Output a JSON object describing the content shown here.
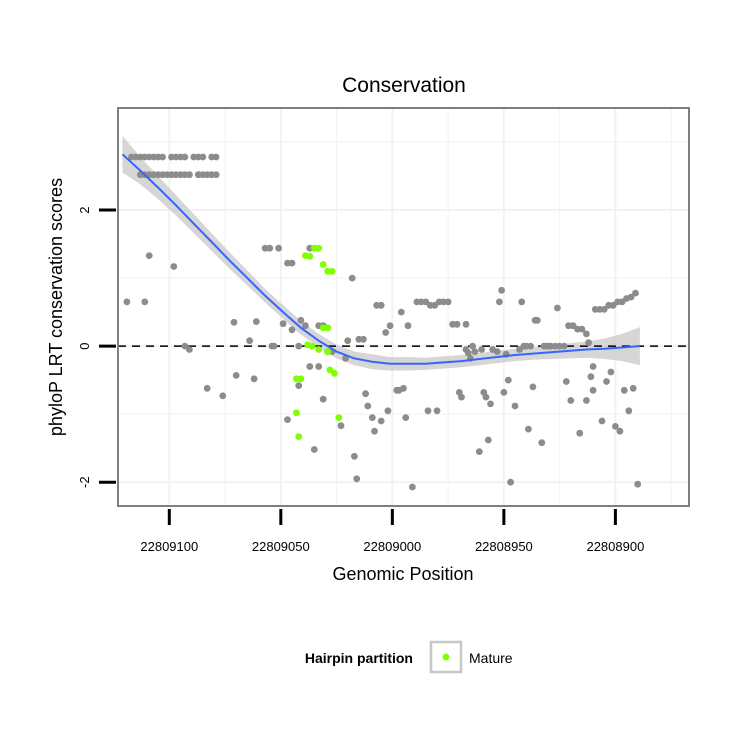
{
  "chart_data": {
    "type": "scatter",
    "title": "Conservation",
    "xlabel": "Genomic Position",
    "ylabel": "phyloP LRT conservation scores",
    "x_reversed": true,
    "xlim": [
      22809123,
      22808867
    ],
    "ylim": [
      -2.35,
      3.5
    ],
    "x_major_ticks": [
      22809100,
      22809050,
      22809000,
      22808950,
      22808900
    ],
    "x_tick_labels": [
      "22809100",
      "22809050",
      "22809000",
      "22808950",
      "22808900"
    ],
    "y_major_ticks": [
      -2,
      0,
      2
    ],
    "y_tick_labels": [
      "-2",
      "0",
      "2"
    ],
    "reference_line": {
      "y": 0,
      "style": "dashed"
    },
    "legend": {
      "title": "Hairpin partition",
      "entries": [
        "Mature"
      ],
      "position": "bottom"
    },
    "colors": {
      "other": "#8c8c8c",
      "mature": "#7fff00",
      "smooth": "#3366ff",
      "ribbon": "#c8c8c8",
      "grid": "#f2f2f2"
    },
    "series": [
      {
        "name": "Other",
        "points": [
          [
            22809117,
            2.78
          ],
          [
            22809115,
            2.78
          ],
          [
            22809113,
            2.78
          ],
          [
            22809111,
            2.78
          ],
          [
            22809109,
            2.78
          ],
          [
            22809107,
            2.78
          ],
          [
            22809105,
            2.78
          ],
          [
            22809103,
            2.78
          ],
          [
            22809099,
            2.78
          ],
          [
            22809097,
            2.78
          ],
          [
            22809095,
            2.78
          ],
          [
            22809093,
            2.78
          ],
          [
            22809089,
            2.78
          ],
          [
            22809087,
            2.78
          ],
          [
            22809085,
            2.78
          ],
          [
            22809081,
            2.78
          ],
          [
            22809079,
            2.78
          ],
          [
            22809113,
            2.52
          ],
          [
            22809111,
            2.52
          ],
          [
            22809109,
            2.52
          ],
          [
            22809107,
            2.52
          ],
          [
            22809105,
            2.52
          ],
          [
            22809103,
            2.52
          ],
          [
            22809101,
            2.52
          ],
          [
            22809099,
            2.52
          ],
          [
            22809097,
            2.52
          ],
          [
            22809095,
            2.52
          ],
          [
            22809093,
            2.52
          ],
          [
            22809091,
            2.52
          ],
          [
            22809087,
            2.52
          ],
          [
            22809085,
            2.52
          ],
          [
            22809083,
            2.52
          ],
          [
            22809081,
            2.52
          ],
          [
            22809079,
            2.52
          ],
          [
            22809119,
            0.65
          ],
          [
            22809111,
            0.65
          ],
          [
            22809109,
            1.33
          ],
          [
            22809098,
            1.17
          ],
          [
            22809093,
            0.0
          ],
          [
            22809091,
            -0.05
          ],
          [
            22809083,
            -0.62
          ],
          [
            22809076,
            -0.73
          ],
          [
            22809071,
            0.35
          ],
          [
            22809070,
            -0.43
          ],
          [
            22809064,
            0.08
          ],
          [
            22809062,
            -0.48
          ],
          [
            22809061,
            0.36
          ],
          [
            22809057,
            1.44
          ],
          [
            22809055,
            1.44
          ],
          [
            22809054,
            0.0
          ],
          [
            22809053,
            0.0
          ],
          [
            22809051,
            1.44
          ],
          [
            22809049,
            0.33
          ],
          [
            22809047,
            -1.08
          ],
          [
            22809047,
            1.22
          ],
          [
            22809045,
            1.22
          ],
          [
            22809045,
            0.24
          ],
          [
            22809042,
            0.0
          ],
          [
            22809042,
            -0.58
          ],
          [
            22809041,
            0.38
          ],
          [
            22809039,
            0.3
          ],
          [
            22809037,
            -0.3
          ],
          [
            22809037,
            1.44
          ],
          [
            22809035,
            -1.52
          ],
          [
            22809033,
            -0.3
          ],
          [
            22809033,
            0.3
          ],
          [
            22809031,
            0.3
          ],
          [
            22809031,
            -0.78
          ],
          [
            22809029,
            -0.08
          ],
          [
            22809027,
            -0.08
          ],
          [
            22809023,
            -1.17
          ],
          [
            22809021,
            -0.18
          ],
          [
            22809020,
            0.08
          ],
          [
            22809018,
            1.0
          ],
          [
            22809017,
            -1.62
          ],
          [
            22809016,
            -1.95
          ],
          [
            22809015,
            0.1
          ],
          [
            22809013,
            0.1
          ],
          [
            22809012,
            -0.7
          ],
          [
            22809011,
            -0.88
          ],
          [
            22809009,
            -1.05
          ],
          [
            22809008,
            -1.25
          ],
          [
            22809007,
            0.6
          ],
          [
            22809005,
            0.6
          ],
          [
            22809005,
            -1.1
          ],
          [
            22809003,
            0.2
          ],
          [
            22809002,
            -0.95
          ],
          [
            22809001,
            0.3
          ],
          [
            22808998,
            -0.65
          ],
          [
            22808997,
            -0.65
          ],
          [
            22808996,
            0.5
          ],
          [
            22808995,
            -0.62
          ],
          [
            22808994,
            -1.05
          ],
          [
            22808993,
            0.3
          ],
          [
            22808991,
            -2.07
          ],
          [
            22808989,
            0.65
          ],
          [
            22808987,
            0.65
          ],
          [
            22808985,
            0.65
          ],
          [
            22808984,
            -0.95
          ],
          [
            22808983,
            0.6
          ],
          [
            22808981,
            0.6
          ],
          [
            22808980,
            -0.95
          ],
          [
            22808979,
            0.65
          ],
          [
            22808977,
            0.65
          ],
          [
            22808975,
            0.65
          ],
          [
            22808973,
            0.32
          ],
          [
            22808971,
            0.32
          ],
          [
            22808970,
            -0.68
          ],
          [
            22808969,
            -0.75
          ],
          [
            22808967,
            -0.05
          ],
          [
            22808967,
            0.32
          ],
          [
            22808966,
            -0.1
          ],
          [
            22808965,
            -0.18
          ],
          [
            22808964,
            0.0
          ],
          [
            22808963,
            -0.08
          ],
          [
            22808961,
            -1.55
          ],
          [
            22808960,
            -0.05
          ],
          [
            22808959,
            -0.68
          ],
          [
            22808958,
            -0.75
          ],
          [
            22808957,
            -1.38
          ],
          [
            22808956,
            -0.85
          ],
          [
            22808955,
            -0.05
          ],
          [
            22808953,
            -0.08
          ],
          [
            22808952,
            0.65
          ],
          [
            22808951,
            0.82
          ],
          [
            22808950,
            -0.68
          ],
          [
            22808949,
            -0.12
          ],
          [
            22808948,
            -0.5
          ],
          [
            22808947,
            -2.0
          ],
          [
            22808945,
            -0.88
          ],
          [
            22808943,
            -0.05
          ],
          [
            22808942,
            0.65
          ],
          [
            22808941,
            0.0
          ],
          [
            22808940,
            0.0
          ],
          [
            22808939,
            -1.22
          ],
          [
            22808938,
            0.0
          ],
          [
            22808937,
            -0.6
          ],
          [
            22808936,
            0.38
          ],
          [
            22808935,
            0.38
          ],
          [
            22808933,
            -1.42
          ],
          [
            22808932,
            0.0
          ],
          [
            22808931,
            0.0
          ],
          [
            22808930,
            0.0
          ],
          [
            22808929,
            0.0
          ],
          [
            22808927,
            0.0
          ],
          [
            22808926,
            0.56
          ],
          [
            22808925,
            0.0
          ],
          [
            22808923,
            0.0
          ],
          [
            22808922,
            -0.52
          ],
          [
            22808921,
            0.3
          ],
          [
            22808920,
            -0.8
          ],
          [
            22808919,
            0.3
          ],
          [
            22808917,
            0.25
          ],
          [
            22808916,
            -1.28
          ],
          [
            22808915,
            0.25
          ],
          [
            22808913,
            0.18
          ],
          [
            22808912,
            0.05
          ],
          [
            22808911,
            -0.45
          ],
          [
            22808910,
            -0.3
          ],
          [
            22808909,
            0.54
          ],
          [
            22808907,
            0.54
          ],
          [
            22808906,
            -1.1
          ],
          [
            22808905,
            0.54
          ],
          [
            22808904,
            -0.52
          ],
          [
            22808903,
            0.6
          ],
          [
            22808902,
            -0.38
          ],
          [
            22808901,
            0.6
          ],
          [
            22808900,
            -1.18
          ],
          [
            22808899,
            0.65
          ],
          [
            22808898,
            -1.25
          ],
          [
            22808897,
            0.65
          ],
          [
            22808896,
            -0.65
          ],
          [
            22808895,
            0.7
          ],
          [
            22808894,
            -0.95
          ],
          [
            22808893,
            0.72
          ],
          [
            22808892,
            -0.62
          ],
          [
            22808891,
            0.78
          ],
          [
            22808890,
            -2.03
          ],
          [
            22808910,
            -0.65
          ],
          [
            22808913,
            -0.8
          ]
        ]
      },
      {
        "name": "Mature",
        "points": [
          [
            22809039,
            1.33
          ],
          [
            22809037,
            1.32
          ],
          [
            22809035,
            1.44
          ],
          [
            22809033,
            1.44
          ],
          [
            22809031,
            1.2
          ],
          [
            22809029,
            1.1
          ],
          [
            22809027,
            1.1
          ],
          [
            22809031,
            0.27
          ],
          [
            22809029,
            0.27
          ],
          [
            22809038,
            0.02
          ],
          [
            22809036,
            0.0
          ],
          [
            22809033,
            -0.05
          ],
          [
            22809029,
            -0.08
          ],
          [
            22809043,
            -0.48
          ],
          [
            22809041,
            -0.48
          ],
          [
            22809028,
            -0.35
          ],
          [
            22809026,
            -0.4
          ],
          [
            22809043,
            -0.98
          ],
          [
            22809024,
            -1.05
          ],
          [
            22809042,
            -1.33
          ]
        ]
      }
    ],
    "smooth": {
      "x": [
        22809121,
        22809113,
        22809105,
        22809097,
        22809089,
        22809081,
        22809073,
        22809065,
        22809057,
        22809049,
        22809041,
        22809033,
        22809025,
        22809017,
        22809009,
        22809001,
        22808993,
        22808985,
        22808977,
        22808969,
        22808961,
        22808953,
        22808945,
        22808937,
        22808929,
        22808921,
        22808913,
        22808905,
        22808897,
        22808889
      ],
      "y": [
        2.82,
        2.58,
        2.33,
        2.07,
        1.8,
        1.53,
        1.26,
        1.0,
        0.74,
        0.5,
        0.27,
        0.08,
        -0.08,
        -0.18,
        -0.23,
        -0.26,
        -0.26,
        -0.26,
        -0.24,
        -0.22,
        -0.19,
        -0.16,
        -0.13,
        -0.11,
        -0.09,
        -0.07,
        -0.05,
        -0.04,
        -0.02,
        0.0
      ],
      "lower": [
        2.55,
        2.38,
        2.16,
        1.92,
        1.66,
        1.4,
        1.14,
        0.89,
        0.64,
        0.4,
        0.17,
        -0.02,
        -0.18,
        -0.28,
        -0.34,
        -0.36,
        -0.36,
        -0.35,
        -0.33,
        -0.31,
        -0.28,
        -0.25,
        -0.22,
        -0.2,
        -0.19,
        -0.18,
        -0.17,
        -0.19,
        -0.22,
        -0.28
      ],
      "upper": [
        3.09,
        2.78,
        2.5,
        2.22,
        1.94,
        1.66,
        1.38,
        1.11,
        0.84,
        0.6,
        0.37,
        0.18,
        0.02,
        -0.08,
        -0.12,
        -0.16,
        -0.16,
        -0.17,
        -0.15,
        -0.13,
        -0.1,
        -0.07,
        -0.04,
        -0.02,
        0.01,
        0.04,
        0.07,
        0.11,
        0.18,
        0.28
      ]
    }
  }
}
